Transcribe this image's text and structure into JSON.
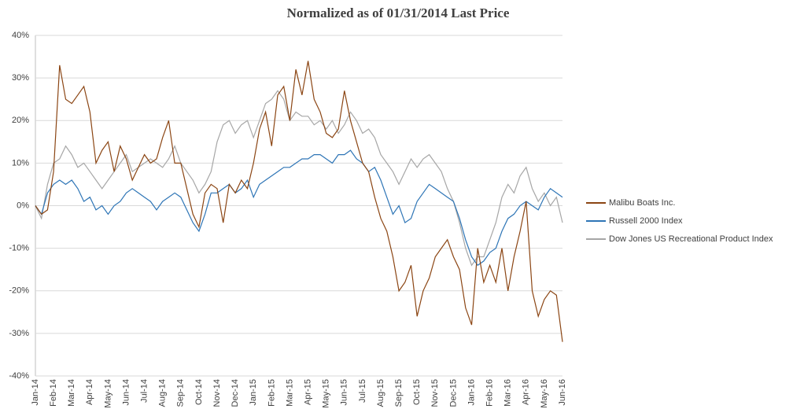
{
  "chart_data": {
    "type": "line",
    "title": "Normalized as of 01/31/2014 Last Price",
    "categories": [
      "Jan-14",
      null,
      null,
      "Feb-14",
      null,
      null,
      "Mar-14",
      null,
      null,
      "Apr-14",
      null,
      null,
      "May-14",
      null,
      null,
      "Jun-14",
      null,
      null,
      "Jul-14",
      null,
      null,
      "Aug-14",
      null,
      null,
      "Sep-14",
      null,
      null,
      "Oct-14",
      null,
      null,
      "Nov-14",
      null,
      null,
      "Dec-14",
      null,
      null,
      "Jan-15",
      null,
      null,
      "Feb-15",
      null,
      null,
      "Mar-15",
      null,
      null,
      "Apr-15",
      null,
      null,
      "May-15",
      null,
      null,
      "Jun-15",
      null,
      null,
      "Jul-15",
      null,
      null,
      "Aug-15",
      null,
      null,
      "Sep-15",
      null,
      null,
      "Oct-15",
      null,
      null,
      "Nov-15",
      null,
      null,
      "Dec-15",
      null,
      null,
      "Jan-16",
      null,
      null,
      "Feb-16",
      null,
      null,
      "Mar-16",
      null,
      null,
      "Apr-16",
      null,
      null,
      "May-16",
      null,
      null,
      "Jun-16"
    ],
    "series": [
      {
        "name": "Malibu Boats Inc.",
        "color": "#8b4513",
        "values": [
          0,
          -2,
          -1,
          8,
          33,
          25,
          24,
          26,
          28,
          22,
          10,
          13,
          15,
          8,
          14,
          11,
          6,
          9,
          12,
          10,
          11,
          16,
          20,
          10,
          10,
          4,
          -2,
          -5,
          3,
          5,
          4,
          -4,
          5,
          3,
          6,
          4,
          10,
          18,
          22,
          14,
          26,
          28,
          20,
          32,
          26,
          34,
          25,
          22,
          17,
          16,
          18,
          27,
          20,
          15,
          10,
          8,
          2,
          -3,
          -6,
          -12,
          -20,
          -18,
          -14,
          -26,
          -20,
          -17,
          -12,
          -10,
          -8,
          -12,
          -15,
          -24,
          -28,
          -10,
          -18,
          -14,
          -18,
          -10,
          -20,
          -12,
          -6,
          1,
          -20,
          -26,
          -22,
          -20,
          -21,
          -32
        ]
      },
      {
        "name": "Russell 2000 Index",
        "color": "#2e75b6",
        "values": [
          0,
          -2,
          3,
          5,
          6,
          5,
          6,
          4,
          1,
          2,
          -1,
          0,
          -2,
          0,
          1,
          3,
          4,
          3,
          2,
          1,
          -1,
          1,
          2,
          3,
          2,
          -1,
          -4,
          -6,
          -2,
          3,
          3,
          4,
          5,
          3,
          4,
          6,
          2,
          5,
          6,
          7,
          8,
          9,
          9,
          10,
          11,
          11,
          12,
          12,
          11,
          10,
          12,
          12,
          13,
          11,
          10,
          8,
          9,
          6,
          2,
          -2,
          0,
          -4,
          -3,
          1,
          3,
          5,
          4,
          3,
          2,
          1,
          -3,
          -8,
          -12,
          -14,
          -13,
          -11,
          -10,
          -6,
          -3,
          -2,
          0,
          1,
          0,
          -1,
          2,
          4,
          3,
          2
        ]
      },
      {
        "name": "Dow Jones US Recreational Product Index",
        "color": "#a6a6a6",
        "values": [
          0,
          -3,
          5,
          10,
          11,
          14,
          12,
          9,
          10,
          8,
          6,
          4,
          6,
          8,
          10,
          12,
          8,
          9,
          10,
          11,
          10,
          9,
          11,
          14,
          10,
          8,
          6,
          3,
          5,
          8,
          15,
          19,
          20,
          17,
          19,
          20,
          16,
          20,
          24,
          25,
          27,
          25,
          20,
          22,
          21,
          21,
          19,
          20,
          18,
          20,
          17,
          19,
          22,
          20,
          17,
          18,
          16,
          12,
          10,
          8,
          5,
          8,
          11,
          9,
          11,
          12,
          10,
          8,
          4,
          1,
          -4,
          -10,
          -14,
          -12,
          -12,
          -8,
          -4,
          2,
          5,
          3,
          7,
          9,
          4,
          1,
          3,
          0,
          2,
          -4
        ]
      }
    ],
    "ylim": [
      -40,
      40
    ],
    "yticks": [
      {
        "value": -40,
        "label": "-40%"
      },
      {
        "value": -30,
        "label": "-30%"
      },
      {
        "value": -20,
        "label": "-20%"
      },
      {
        "value": -10,
        "label": "-10%"
      },
      {
        "value": 0,
        "label": "0%"
      },
      {
        "value": 10,
        "label": "10%"
      },
      {
        "value": 20,
        "label": "20%"
      },
      {
        "value": 30,
        "label": "30%"
      },
      {
        "value": 40,
        "label": "40%"
      }
    ],
    "grid": true,
    "legend": "right"
  }
}
